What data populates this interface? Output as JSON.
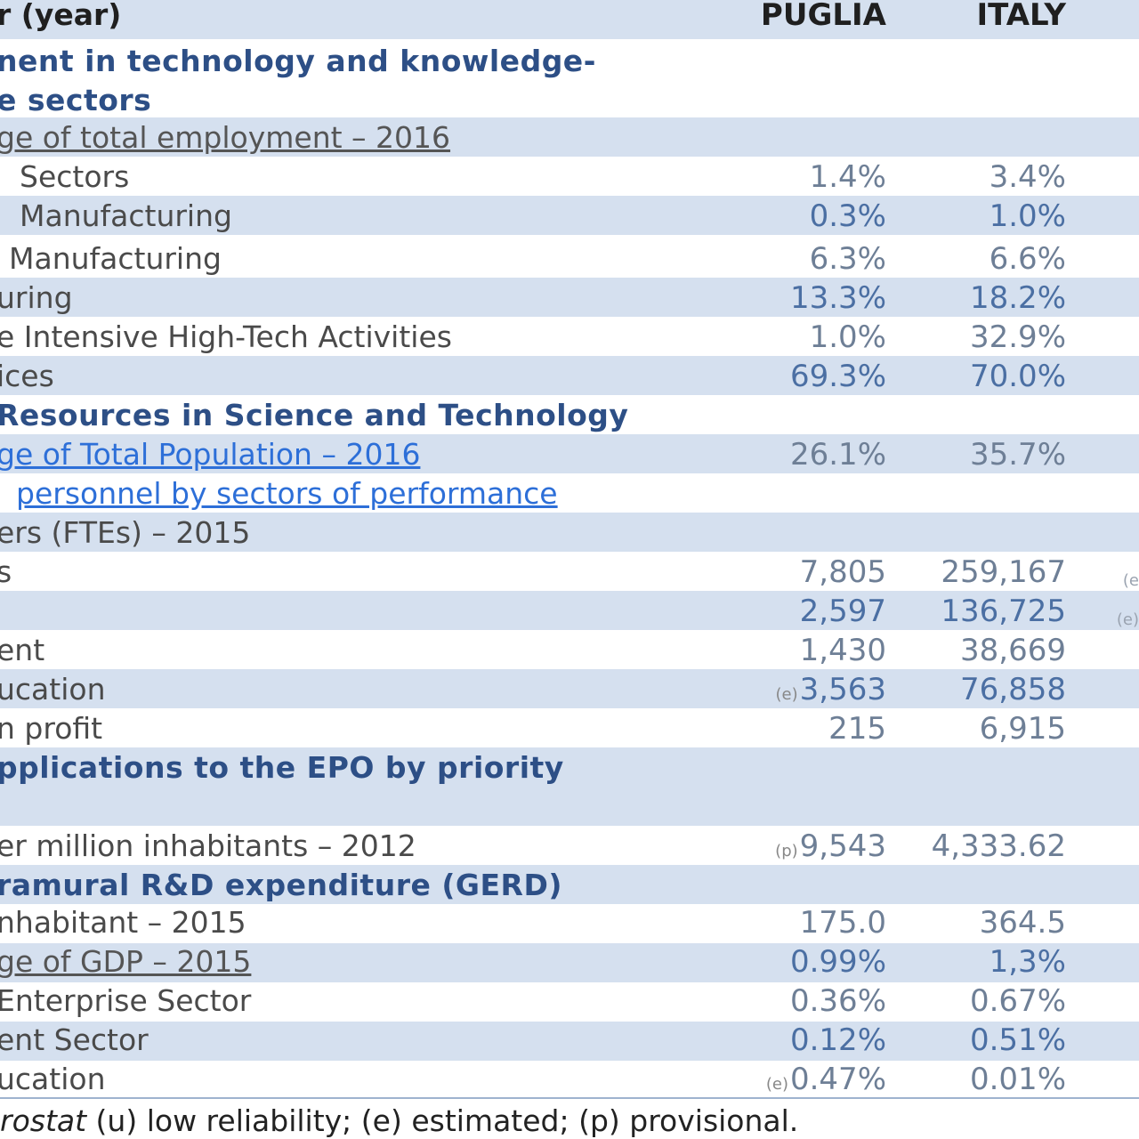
{
  "header": {
    "indicator_label": "r (year)",
    "col_puglia": "PUGLIA",
    "col_italy": "ITALY"
  },
  "rows": {
    "s1_line1": "nent  in  technology  and  knowledge-",
    "s1_line2": "e sectors",
    "s1_sub": "ge of total employment – 2016",
    "r1": {
      "label": "Sectors",
      "puglia": "1.4%",
      "italy": "3.4%"
    },
    "r2": {
      "label": "Manufacturing",
      "puglia": "0.3%",
      "italy": "1.0%"
    },
    "r3": {
      "label": "Manufacturing",
      "puglia": "6.3%",
      "italy": "6.6%"
    },
    "r4": {
      "label": "uring",
      "puglia": "13.3%",
      "italy": "18.2%"
    },
    "r5": {
      "label": "e Intensive High-Tech Activities",
      "puglia": "1.0%",
      "italy": "32.9%"
    },
    "r6": {
      "label": "ices",
      "puglia": "69.3%",
      "italy": "70.0%"
    },
    "s2": "Resources in Science and Technology",
    "s2_sub": {
      "label": "ge of Total Population – 2016",
      "puglia": "26.1%",
      "italy": "35.7%"
    },
    "s3_link": "personnel by sectors of performance",
    "s3_sub": "ers (FTEs) – 2015",
    "r7": {
      "label": "s",
      "puglia": "7,805",
      "italy": "259,167",
      "edge": "(e"
    },
    "r8": {
      "label": "",
      "puglia": "2,597",
      "italy": "136,725",
      "edge": "(e)"
    },
    "r9": {
      "label": "ent",
      "puglia": "1,430",
      "italy": "38,669"
    },
    "r10": {
      "label": "ucation",
      "flag": "(e)",
      "puglia": "3,563",
      "italy": "76,858"
    },
    "r11": {
      "label": "n profit",
      "puglia": "215",
      "italy": "6,915"
    },
    "s4_line1": "pplications  to  the  EPO  by  priority",
    "s4_sub": {
      "label": "er million inhabitants – 2012",
      "flag": "(p)",
      "puglia": "9,543",
      "italy": "4,333.62"
    },
    "s5": "ramural R&D expenditure (GERD)",
    "r12": {
      "label": "nhabitant – 2015",
      "puglia": "175.0",
      "italy": "364.5"
    },
    "r13": {
      "label": "ge of GDP – 2015",
      "puglia": "0.99%",
      "italy": "1,3%"
    },
    "r14": {
      "label": "Enterprise Sector",
      "puglia": "0.36%",
      "italy": "0.67%"
    },
    "r15": {
      "label": "ent Sector",
      "puglia": "0.12%",
      "italy": "0.51%"
    },
    "r16": {
      "label": "ucation",
      "flag": "(e)",
      "puglia": "0.47%",
      "italy": "0.01%"
    }
  },
  "footer": {
    "source_italic": "rostat",
    "source_rest": " (u) low reliability; (e) estimated; (p) provisional."
  }
}
